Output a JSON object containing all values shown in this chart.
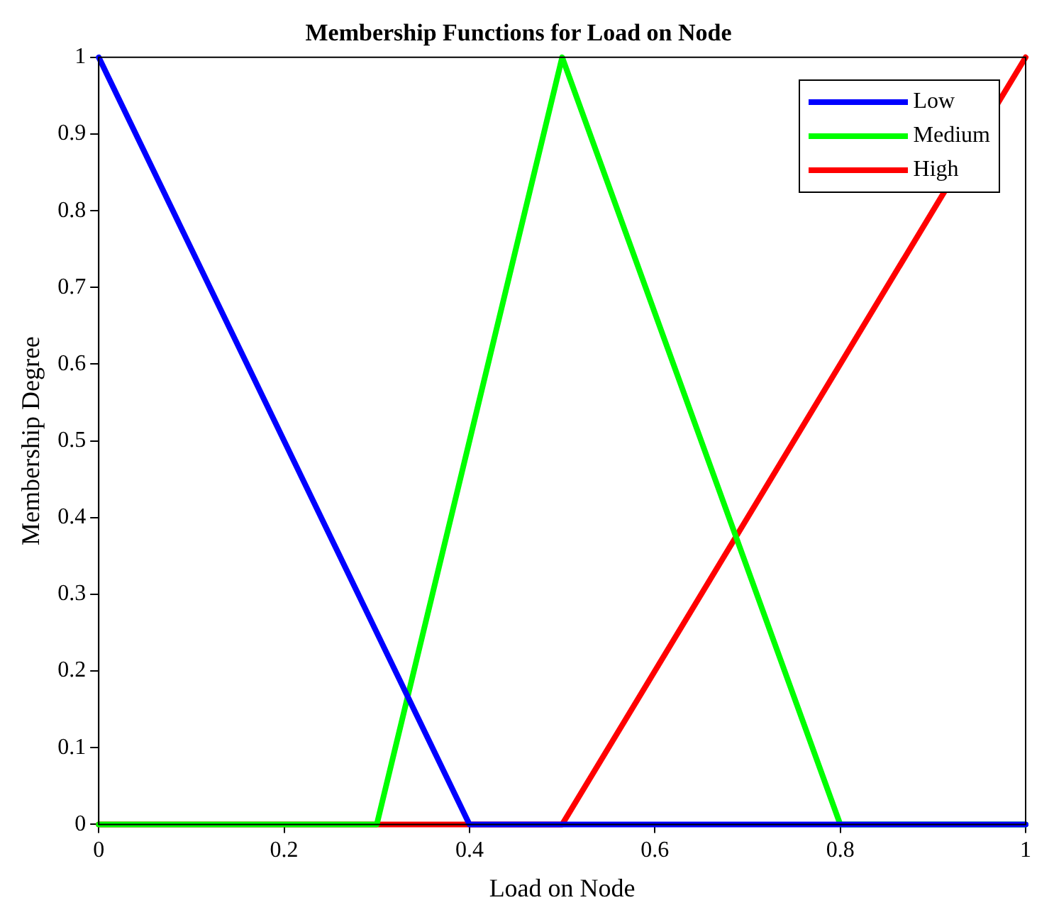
{
  "chart_data": {
    "type": "line",
    "title": "Membership Functions for Load on Node",
    "xlabel": "Load on Node",
    "ylabel": "Membership Degree",
    "xlim": [
      0,
      1
    ],
    "xticks": [
      0,
      0.2,
      0.4,
      0.6,
      0.8,
      1
    ],
    "ylim": [
      0,
      1
    ],
    "yticks": [
      0,
      0.1,
      0.2,
      0.3,
      0.4,
      0.5,
      0.6,
      0.7,
      0.8,
      0.9,
      1
    ],
    "grid": false,
    "legend": "top right",
    "marker": "none",
    "line_style": "solid",
    "series": [
      {
        "name": "Low",
        "color": "#0000ff",
        "x": [
          0,
          0.4,
          1
        ],
        "values": [
          1,
          0,
          0
        ]
      },
      {
        "name": "Medium",
        "color": "#00ff00",
        "x": [
          0,
          0.3,
          0.5,
          0.8,
          1
        ],
        "values": [
          0,
          0,
          1,
          0,
          0
        ]
      },
      {
        "name": "High",
        "color": "#ff0000",
        "x": [
          0,
          0.5,
          1
        ],
        "values": [
          0,
          0,
          1
        ]
      }
    ]
  }
}
